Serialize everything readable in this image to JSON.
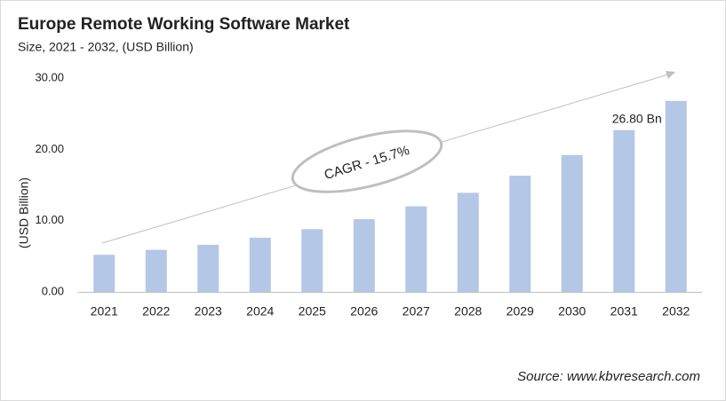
{
  "chart_data": {
    "type": "bar",
    "title": "Europe Remote Working Software Market",
    "subtitle": "Size, 2021 - 2032, (USD Billion)",
    "y_label": "(USD Billion)",
    "annotation": "CAGR - 15.7%",
    "source": "Source: www.kbvresearch.com",
    "categories": [
      "2021",
      "2022",
      "2023",
      "2024",
      "2025",
      "2026",
      "2027",
      "2028",
      "2029",
      "2030",
      "2031",
      "2032"
    ],
    "values": [
      5.2,
      5.9,
      6.6,
      7.6,
      8.8,
      10.2,
      12.0,
      13.9,
      16.3,
      19.2,
      22.7,
      26.8
    ],
    "value_labels": [
      null,
      null,
      null,
      null,
      null,
      null,
      null,
      null,
      null,
      null,
      null,
      "26.80 Bn"
    ],
    "color": "#b4c7e7",
    "ylim": [
      0,
      30
    ],
    "yticks": [
      {
        "value": 0,
        "label": "0.00"
      },
      {
        "value": 10,
        "label": "10.00"
      },
      {
        "value": 20,
        "label": "20.00"
      },
      {
        "value": 30,
        "label": "30.00"
      }
    ],
    "grid": false
  }
}
